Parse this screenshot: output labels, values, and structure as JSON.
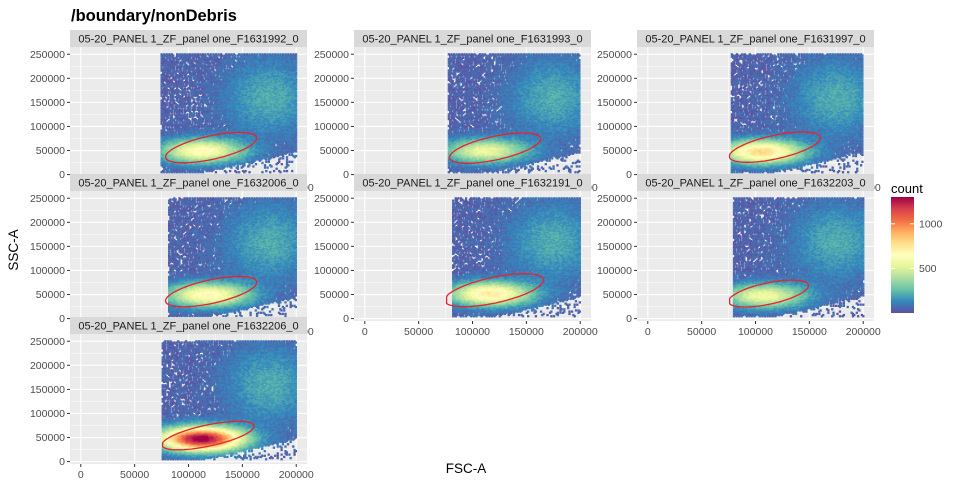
{
  "chart_data": {
    "type": "heatmap",
    "title": "/boundary/nonDebris",
    "xlabel": "FSC-A",
    "ylabel": "SSC-A",
    "xlim": [
      -10000,
      210000
    ],
    "ylim": [
      -5000,
      265000
    ],
    "x_ticks": [
      0,
      50000,
      100000,
      150000,
      200000
    ],
    "y_ticks": [
      0,
      50000,
      100000,
      150000,
      200000,
      250000
    ],
    "x_tick_labels": [
      "0",
      "50000",
      "100000",
      "150000",
      "200000"
    ],
    "y_tick_labels": [
      "0",
      "50000",
      "100000",
      "150000",
      "200000",
      "250000"
    ],
    "legend": {
      "title": "count",
      "placement": "right",
      "ticks": [
        500,
        1000
      ],
      "tick_labels": [
        "500",
        "1000"
      ],
      "max": 1300
    },
    "colors": {
      "gate": "#e8242b",
      "panel_bg": "#ebebeb",
      "strip_bg": "#d9d9d9",
      "grid": "#ffffff",
      "palette": [
        "#5e4fa2",
        "#3288bd",
        "#66c2a5",
        "#abdda4",
        "#e6f598",
        "#ffffbf",
        "#fee08b",
        "#fdae61",
        "#f46d43",
        "#d53e4f",
        "#9e0142"
      ]
    },
    "panels": [
      {
        "label": "05-20_PANEL 1_ZF_panel one_F1631992_0",
        "row": 0,
        "col": 0,
        "peak_count": 620,
        "x_min": 75000,
        "core_x": 112000,
        "core_y": 50000,
        "gate": {
          "cx": 121000,
          "cy": 56000,
          "a": 48000,
          "b": 22000,
          "angle_deg": 32
        }
      },
      {
        "label": "05-20_PANEL 1_ZF_panel one_F1631993_0",
        "row": 0,
        "col": 1,
        "peak_count": 520,
        "x_min": 78000,
        "core_x": 112000,
        "core_y": 50000,
        "gate": {
          "cx": 121000,
          "cy": 55000,
          "a": 48000,
          "b": 22000,
          "angle_deg": 32
        }
      },
      {
        "label": "05-20_PANEL 1_ZF_panel one_F1631997_0",
        "row": 0,
        "col": 2,
        "peak_count": 760,
        "x_min": 78000,
        "core_x": 106000,
        "core_y": 48000,
        "gate": {
          "cx": 118000,
          "cy": 57000,
          "a": 48000,
          "b": 22000,
          "angle_deg": 32
        }
      },
      {
        "label": "05-20_PANEL 1_ZF_panel one_F1632006_0",
        "row": 1,
        "col": 0,
        "peak_count": 640,
        "x_min": 82000,
        "core_x": 118000,
        "core_y": 50000,
        "gate": {
          "cx": 121000,
          "cy": 56000,
          "a": 48000,
          "b": 22000,
          "angle_deg": 32
        }
      },
      {
        "label": "05-20_PANEL 1_ZF_panel one_F1632191_0",
        "row": 1,
        "col": 1,
        "peak_count": 700,
        "x_min": 82000,
        "core_x": 116000,
        "core_y": 52000,
        "gate": {
          "cx": 120000,
          "cy": 59000,
          "a": 52000,
          "b": 24000,
          "angle_deg": 32
        }
      },
      {
        "label": "05-20_PANEL 1_ZF_panel one_F1632203_0",
        "row": 1,
        "col": 2,
        "peak_count": 540,
        "x_min": 80000,
        "core_x": 108000,
        "core_y": 48000,
        "gate": {
          "cx": 112000,
          "cy": 52000,
          "a": 42000,
          "b": 20000,
          "angle_deg": 32
        }
      },
      {
        "label": "05-20_PANEL 1_ZF_panel one_F1632206_0",
        "row": 2,
        "col": 0,
        "peak_count": 1300,
        "x_min": 76000,
        "core_x": 112000,
        "core_y": 48000,
        "gate": {
          "cx": 118000,
          "cy": 54000,
          "a": 48000,
          "b": 20000,
          "angle_deg": 30
        }
      }
    ]
  }
}
